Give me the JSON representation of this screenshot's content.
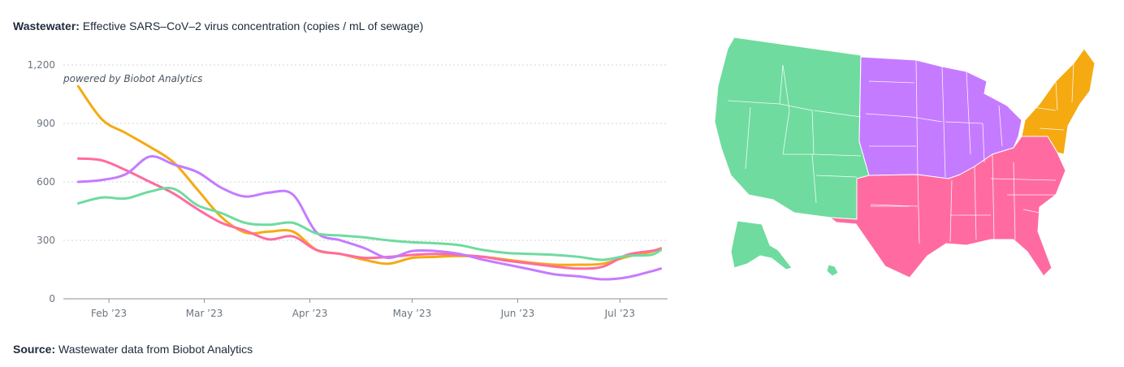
{
  "title": {
    "bold": "Wastewater:",
    "text": "Effective SARS–CoV–2 virus concentration (copies / mL of sewage)"
  },
  "credit": "powered by Biobot Analytics",
  "source": {
    "bold": "Source:",
    "text": "Wastewater data from Biobot Analytics"
  },
  "colors": {
    "west": "#6fdb9f",
    "midwest": "#c57bff",
    "south": "#ff6ba0",
    "northeast": "#f5aa12",
    "grid": "#cfd4da",
    "axis": "#8a929a"
  },
  "chart_data": {
    "type": "line",
    "title": "Effective SARS–CoV–2 virus concentration (copies / mL of sewage)",
    "xlabel": "",
    "ylabel": "",
    "ylim": [
      0,
      1200
    ],
    "yticks": [
      {
        "value": 0,
        "label": "0"
      },
      {
        "value": 300,
        "label": "300"
      },
      {
        "value": 600,
        "label": "600"
      },
      {
        "value": 900,
        "label": "900"
      },
      {
        "value": 1200,
        "label": "1,200"
      }
    ],
    "xlim": [
      "2023-01-21",
      "2023-07-15"
    ],
    "xticks": [
      {
        "value": "2023-02-01",
        "label": "Feb ’23"
      },
      {
        "value": "2023-03-01",
        "label": "Mar ’23"
      },
      {
        "value": "2023-04-01",
        "label": "Apr ’23"
      },
      {
        "value": "2023-05-01",
        "label": "May ’23"
      },
      {
        "value": "2023-06-01",
        "label": "Jun ’23"
      },
      {
        "value": "2023-07-01",
        "label": "Jul ’23"
      }
    ],
    "grid": true,
    "series": [
      {
        "color": "#f5aa12",
        "region": "northeast",
        "x": [
          "2023-01-23",
          "2023-01-30",
          "2023-02-06",
          "2023-02-13",
          "2023-02-20",
          "2023-02-27",
          "2023-03-06",
          "2023-03-13",
          "2023-03-20",
          "2023-03-27",
          "2023-04-03",
          "2023-04-10",
          "2023-04-17",
          "2023-04-24",
          "2023-05-01",
          "2023-05-08",
          "2023-05-15",
          "2023-05-22",
          "2023-05-29",
          "2023-06-05",
          "2023-06-12",
          "2023-06-19",
          "2023-06-26",
          "2023-07-03",
          "2023-07-10",
          "2023-07-13"
        ],
        "y": [
          1090,
          920,
          850,
          780,
          700,
          560,
          420,
          340,
          345,
          345,
          250,
          230,
          200,
          180,
          210,
          215,
          220,
          215,
          200,
          185,
          175,
          175,
          180,
          215,
          240,
          260
        ]
      },
      {
        "color": "#ff6ba0",
        "region": "south",
        "x": [
          "2023-01-23",
          "2023-01-30",
          "2023-02-06",
          "2023-02-13",
          "2023-02-20",
          "2023-02-27",
          "2023-03-06",
          "2023-03-13",
          "2023-03-20",
          "2023-03-27",
          "2023-04-03",
          "2023-04-10",
          "2023-04-17",
          "2023-04-24",
          "2023-05-01",
          "2023-05-08",
          "2023-05-15",
          "2023-05-22",
          "2023-05-29",
          "2023-06-05",
          "2023-06-12",
          "2023-06-19",
          "2023-06-26",
          "2023-07-03",
          "2023-07-10",
          "2023-07-13"
        ],
        "y": [
          720,
          710,
          660,
          600,
          540,
          460,
          390,
          350,
          305,
          320,
          250,
          230,
          210,
          215,
          225,
          230,
          225,
          215,
          195,
          180,
          165,
          155,
          165,
          225,
          245,
          255
        ]
      },
      {
        "color": "#c57bff",
        "region": "midwest",
        "x": [
          "2023-01-23",
          "2023-01-30",
          "2023-02-06",
          "2023-02-13",
          "2023-02-20",
          "2023-02-27",
          "2023-03-06",
          "2023-03-13",
          "2023-03-20",
          "2023-03-27",
          "2023-04-03",
          "2023-04-10",
          "2023-04-17",
          "2023-04-24",
          "2023-05-01",
          "2023-05-08",
          "2023-05-15",
          "2023-05-22",
          "2023-05-29",
          "2023-06-05",
          "2023-06-12",
          "2023-06-19",
          "2023-06-26",
          "2023-07-03",
          "2023-07-10",
          "2023-07-13"
        ],
        "y": [
          600,
          610,
          640,
          730,
          690,
          650,
          570,
          525,
          545,
          535,
          340,
          300,
          260,
          210,
          245,
          245,
          230,
          200,
          175,
          150,
          125,
          115,
          100,
          110,
          140,
          155
        ]
      },
      {
        "color": "#6fdb9f",
        "region": "west",
        "x": [
          "2023-01-23",
          "2023-01-30",
          "2023-02-06",
          "2023-02-13",
          "2023-02-20",
          "2023-02-27",
          "2023-03-06",
          "2023-03-13",
          "2023-03-20",
          "2023-03-27",
          "2023-04-03",
          "2023-04-10",
          "2023-04-17",
          "2023-04-24",
          "2023-05-01",
          "2023-05-08",
          "2023-05-15",
          "2023-05-22",
          "2023-05-29",
          "2023-06-05",
          "2023-06-12",
          "2023-06-19",
          "2023-06-26",
          "2023-07-03",
          "2023-07-10",
          "2023-07-13"
        ],
        "y": [
          490,
          520,
          515,
          550,
          565,
          480,
          440,
          390,
          380,
          390,
          335,
          325,
          315,
          300,
          290,
          285,
          275,
          250,
          235,
          230,
          225,
          215,
          200,
          220,
          225,
          250
        ]
      }
    ]
  }
}
